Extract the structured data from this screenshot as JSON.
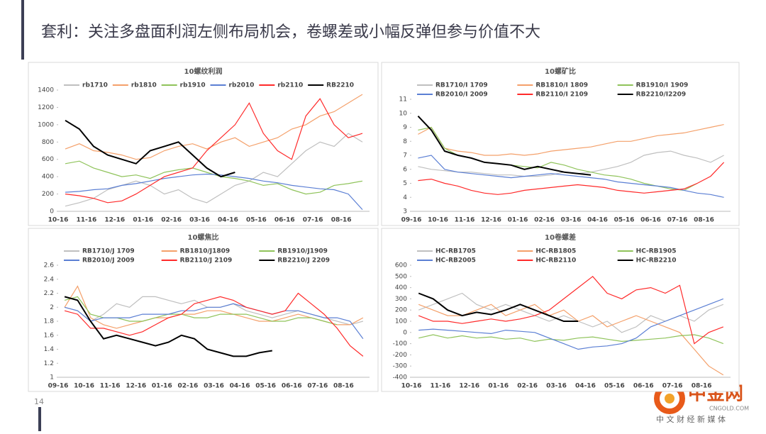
{
  "title": "套利：关注多盘面利润左侧布局机会，卷螺差或小幅反弹但参与价值不大",
  "page_number": "14",
  "watermark": {
    "brand": "中金网",
    "site": "CNGOLD.COM",
    "slogan": "中 文 财 经 新 媒 体"
  },
  "chart_data": [
    {
      "type": "line",
      "title": "10螺纹利润",
      "categories": [
        "10-16",
        null,
        "11-16",
        null,
        "12-16",
        null,
        "01-16",
        null,
        "02-16",
        null,
        "03-16",
        null,
        "04-16",
        null,
        "05-16",
        null,
        "06-16",
        null,
        "07-16",
        null,
        "08-16",
        null
      ],
      "ylim": [
        0,
        1400
      ],
      "yticks": [
        0,
        200,
        400,
        600,
        800,
        1000,
        1200,
        1400
      ],
      "series": [
        {
          "name": "rb1710",
          "color": "#bfbfbf",
          "values": [
            60,
            100,
            150,
            250,
            300,
            350,
            300,
            200,
            250,
            150,
            100,
            200,
            300,
            350,
            450,
            400,
            550,
            700,
            800,
            750,
            900,
            800
          ]
        },
        {
          "name": "rb1810",
          "color": "#f4a06a",
          "values": [
            720,
            780,
            700,
            680,
            650,
            600,
            620,
            700,
            750,
            780,
            720,
            800,
            850,
            750,
            800,
            850,
            950,
            1000,
            1100,
            1150,
            1250,
            1350
          ]
        },
        {
          "name": "rb1910",
          "color": "#8fc35a",
          "values": [
            550,
            580,
            500,
            450,
            400,
            420,
            380,
            450,
            480,
            500,
            450,
            400,
            380,
            350,
            300,
            320,
            250,
            200,
            220,
            300,
            320,
            350
          ]
        },
        {
          "name": "rb2010",
          "color": "#5b7fd4",
          "values": [
            220,
            230,
            250,
            260,
            300,
            320,
            350,
            380,
            400,
            420,
            430,
            420,
            400,
            380,
            350,
            330,
            300,
            280,
            260,
            250,
            200,
            20
          ]
        },
        {
          "name": "rb2110",
          "color": "#ff2a2a",
          "values": [
            200,
            180,
            150,
            100,
            120,
            200,
            300,
            400,
            450,
            500,
            700,
            850,
            1000,
            1250,
            900,
            700,
            600,
            1100,
            1300,
            1000,
            850,
            900
          ]
        },
        {
          "name": "RB2210",
          "color": "#000000",
          "values": [
            1050,
            950,
            750,
            650,
            600,
            550,
            700,
            750,
            800,
            650,
            500,
            400,
            450,
            null,
            null,
            null,
            null,
            null,
            null,
            null,
            null,
            null
          ]
        }
      ]
    },
    {
      "type": "line",
      "title": "10螺矿比",
      "categories": [
        "09-16",
        null,
        "10-16",
        null,
        "11-16",
        null,
        "12-16",
        null,
        "01-16",
        null,
        "02-16",
        null,
        "03-16",
        null,
        "04-16",
        null,
        "05-16",
        null,
        "06-16",
        null,
        "07-16",
        null,
        "08-16",
        null
      ],
      "ylim": [
        3,
        11
      ],
      "yticks": [
        3,
        4,
        5,
        6,
        7,
        8,
        9,
        10,
        11
      ],
      "series": [
        {
          "name": "RB1710/I 1709",
          "color": "#bfbfbf",
          "values": [
            6.2,
            6.0,
            5.9,
            5.8,
            5.8,
            5.7,
            5.6,
            5.6,
            5.5,
            5.5,
            5.6,
            5.8,
            5.7,
            5.8,
            6.0,
            6.2,
            6.5,
            7.0,
            7.2,
            7.3,
            7.0,
            6.8,
            6.5,
            7.0
          ]
        },
        {
          "name": "RB1810/I 1809",
          "color": "#f4a06a",
          "values": [
            8.5,
            9.0,
            7.5,
            7.3,
            7.2,
            7.0,
            7.0,
            7.1,
            7.0,
            7.1,
            7.3,
            7.4,
            7.5,
            7.6,
            7.8,
            8.0,
            8.0,
            8.2,
            8.4,
            8.5,
            8.6,
            8.8,
            9.0,
            9.2
          ]
        },
        {
          "name": "RB1910/I 1909",
          "color": "#8fc35a",
          "values": [
            8.8,
            9.0,
            7.5,
            7.0,
            6.8,
            6.5,
            6.4,
            6.3,
            6.2,
            6.1,
            6.5,
            6.3,
            6.0,
            5.8,
            5.6,
            5.5,
            5.3,
            5.0,
            4.8,
            4.6,
            4.5,
            5.0,
            null,
            null
          ]
        },
        {
          "name": "RB2010/I  2009",
          "color": "#5b7fd4",
          "values": [
            6.8,
            7.0,
            6.0,
            5.8,
            5.7,
            5.6,
            5.5,
            5.4,
            5.5,
            5.6,
            5.7,
            5.6,
            5.5,
            5.4,
            5.3,
            5.1,
            5.0,
            4.9,
            4.8,
            4.7,
            4.5,
            4.3,
            4.2,
            4.0
          ]
        },
        {
          "name": "RB2110/I 2109",
          "color": "#ff2a2a",
          "values": [
            5.2,
            5.3,
            5.0,
            4.8,
            4.5,
            4.3,
            4.2,
            4.3,
            4.5,
            4.6,
            4.7,
            4.8,
            4.9,
            4.8,
            4.7,
            4.5,
            4.4,
            4.3,
            4.4,
            4.5,
            4.6,
            5.0,
            5.5,
            6.5
          ]
        },
        {
          "name": "RB2210/I2209",
          "color": "#000000",
          "values": [
            9.8,
            8.8,
            7.3,
            7.0,
            6.8,
            6.5,
            6.4,
            6.3,
            6.0,
            6.2,
            6.0,
            5.8,
            5.7,
            5.6,
            null,
            null,
            null,
            null,
            null,
            null,
            null,
            null,
            null,
            null
          ]
        }
      ]
    },
    {
      "type": "line",
      "title": "10螺焦比",
      "categories": [
        "09-16",
        null,
        "10-16",
        null,
        "11-16",
        null,
        "12-16",
        null,
        "01-16",
        null,
        "02-16",
        null,
        "03-16",
        null,
        "04-16",
        null,
        "05-16",
        null,
        "06-16",
        null,
        "07-16",
        null,
        "08-16",
        null
      ],
      "ylim": [
        1,
        2.6
      ],
      "yticks": [
        1,
        1.2,
        1.4,
        1.6,
        1.8,
        2,
        2.2,
        2.4,
        2.6
      ],
      "series": [
        {
          "name": "RB1710/J 1709",
          "color": "#bfbfbf",
          "values": [
            2.0,
            1.95,
            1.8,
            1.9,
            2.05,
            2.0,
            2.15,
            2.15,
            2.1,
            2.05,
            2.1,
            2.0,
            2.0,
            2.05,
            1.95,
            1.9,
            1.85,
            1.9,
            1.95,
            1.9,
            1.85,
            1.8,
            1.75,
            1.8
          ]
        },
        {
          "name": "RB1810/J1809",
          "color": "#f4a06a",
          "values": [
            2.0,
            2.3,
            1.85,
            1.75,
            1.7,
            1.75,
            1.8,
            1.85,
            1.85,
            1.9,
            1.9,
            1.95,
            1.95,
            1.9,
            1.85,
            1.8,
            1.8,
            1.85,
            1.9,
            1.85,
            1.8,
            1.75,
            1.75,
            1.85
          ]
        },
        {
          "name": "RB1910/J1909",
          "color": "#8fc35a",
          "values": [
            2.1,
            2.15,
            1.9,
            1.85,
            1.85,
            1.8,
            1.8,
            1.85,
            1.9,
            1.9,
            1.85,
            1.85,
            1.9,
            1.9,
            1.9,
            1.85,
            1.8,
            1.8,
            1.85,
            1.85,
            1.8,
            1.75,
            null,
            null
          ]
        },
        {
          "name": "RB2010/J 2009",
          "color": "#5b7fd4",
          "values": [
            2.0,
            1.95,
            1.8,
            1.85,
            1.85,
            1.85,
            1.9,
            1.9,
            1.9,
            1.95,
            1.95,
            2.0,
            2.0,
            2.05,
            2.0,
            1.95,
            1.9,
            1.95,
            1.95,
            1.9,
            1.85,
            1.85,
            1.8,
            1.55
          ]
        },
        {
          "name": "RB2110/J 2109",
          "color": "#ff2a2a",
          "values": [
            1.95,
            1.9,
            1.7,
            1.7,
            1.65,
            1.6,
            1.65,
            1.75,
            1.85,
            1.9,
            2.05,
            2.1,
            2.15,
            2.1,
            2.0,
            1.95,
            1.9,
            1.95,
            2.2,
            2.05,
            1.9,
            1.7,
            1.45,
            1.3
          ]
        },
        {
          "name": "RB2210/J 2209",
          "color": "#000000",
          "values": [
            2.15,
            2.1,
            1.8,
            1.55,
            1.6,
            1.55,
            1.5,
            1.45,
            1.5,
            1.6,
            1.55,
            1.4,
            1.35,
            1.3,
            1.3,
            1.35,
            1.38,
            null,
            null,
            null,
            null,
            null,
            null,
            null
          ]
        }
      ]
    },
    {
      "type": "line",
      "title": "10卷螺差",
      "categories": [
        "10-16",
        null,
        "11-16",
        null,
        "12-16",
        null,
        "01-16",
        null,
        "02-16",
        null,
        "03-16",
        null,
        "04-16",
        null,
        "05-16",
        null,
        "06-16",
        null,
        "07-16",
        null,
        "08-16",
        null
      ],
      "ylim": [
        -400,
        600
      ],
      "yticks": [
        -400,
        -300,
        -200,
        -100,
        0,
        100,
        200,
        300,
        400,
        500,
        600
      ],
      "series": [
        {
          "name": "HC-RB1705",
          "color": "#bfbfbf",
          "values": [
            200,
            250,
            300,
            350,
            250,
            200,
            250,
            200,
            150,
            100,
            150,
            100,
            50,
            100,
            0,
            50,
            150,
            100,
            150,
            100,
            200,
            250
          ]
        },
        {
          "name": "HC-RB1805",
          "color": "#f4a06a",
          "values": [
            250,
            200,
            150,
            150,
            200,
            250,
            150,
            200,
            250,
            150,
            200,
            100,
            150,
            50,
            100,
            150,
            100,
            50,
            0,
            -150,
            -300,
            -380
          ]
        },
        {
          "name": "HC-RB1905",
          "color": "#8fc35a",
          "values": [
            -50,
            -20,
            -50,
            -30,
            -50,
            -40,
            -60,
            -50,
            -80,
            -60,
            -70,
            -50,
            -40,
            -60,
            -80,
            -70,
            -60,
            -50,
            -30,
            -20,
            -50,
            -100
          ]
        },
        {
          "name": "HC-RB2005",
          "color": "#5b7fd4",
          "values": [
            20,
            30,
            20,
            10,
            0,
            -10,
            20,
            10,
            0,
            -50,
            -100,
            -150,
            -130,
            -120,
            -100,
            -50,
            50,
            100,
            150,
            200,
            250,
            300
          ]
        },
        {
          "name": "HC-RB2110",
          "color": "#ff2a2a",
          "values": [
            150,
            100,
            100,
            80,
            100,
            120,
            100,
            120,
            150,
            200,
            300,
            400,
            500,
            350,
            300,
            380,
            400,
            350,
            420,
            -100,
            0,
            50
          ]
        },
        {
          "name": "HC-RB2210",
          "color": "#000000",
          "values": [
            350,
            300,
            200,
            150,
            180,
            160,
            200,
            250,
            200,
            150,
            100,
            100,
            null,
            null,
            null,
            null,
            null,
            null,
            null,
            null,
            null,
            null
          ]
        }
      ]
    }
  ]
}
